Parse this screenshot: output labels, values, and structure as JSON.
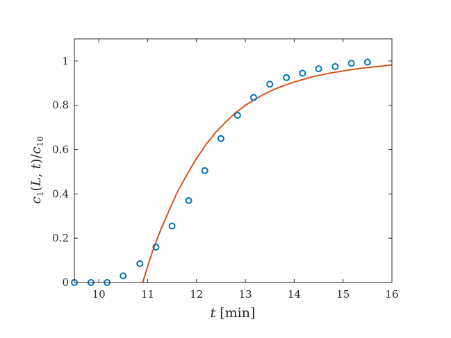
{
  "chart_data": {
    "type": "scatter",
    "title": "",
    "xlabel": "t [min]",
    "ylabel": "c_1(L,t)/c_10",
    "xlim": [
      9.5,
      16
    ],
    "ylim": [
      0,
      1.1
    ],
    "xticks": [
      10,
      11,
      12,
      13,
      14,
      15,
      16
    ],
    "yticks": [
      0,
      0.2,
      0.4,
      0.6,
      0.8,
      1
    ],
    "xtick_labels": [
      "10",
      "11",
      "12",
      "13",
      "14",
      "15",
      "16"
    ],
    "ytick_labels": [
      "0",
      "0.2",
      "0.4",
      "0.6",
      "0.8",
      "1"
    ],
    "grid": false,
    "legend": "none",
    "series": [
      {
        "type": "scatter",
        "marker": "circle-open",
        "color": "#0072BD",
        "x": [
          9.5,
          9.84,
          10.17,
          10.5,
          10.84,
          11.17,
          11.5,
          11.84,
          12.17,
          12.5,
          12.84,
          13.17,
          13.5,
          13.84,
          14.17,
          14.5,
          14.84,
          15.17,
          15.5
        ],
        "y": [
          0.0,
          0.0,
          0.0,
          0.03,
          0.085,
          0.16,
          0.255,
          0.37,
          0.505,
          0.65,
          0.755,
          0.835,
          0.895,
          0.925,
          0.945,
          0.965,
          0.975,
          0.99,
          0.995
        ]
      },
      {
        "type": "line",
        "color": "#D95319",
        "x": [
          10.9,
          11.0,
          11.1,
          11.2,
          11.3,
          11.4,
          11.5,
          11.6,
          11.8,
          12.0,
          12.2,
          12.4,
          12.6,
          12.8,
          13.0,
          13.2,
          13.4,
          13.6,
          13.8,
          14.0,
          14.2,
          14.4,
          14.6,
          14.8,
          15.0,
          15.2,
          15.4,
          15.6,
          15.8,
          16.0
        ],
        "y": [
          0.0,
          0.073,
          0.14,
          0.2,
          0.255,
          0.305,
          0.355,
          0.405,
          0.485,
          0.56,
          0.625,
          0.68,
          0.725,
          0.767,
          0.8,
          0.828,
          0.852,
          0.873,
          0.89,
          0.905,
          0.918,
          0.93,
          0.94,
          0.948,
          0.955,
          0.962,
          0.968,
          0.973,
          0.977,
          0.982
        ]
      }
    ]
  }
}
